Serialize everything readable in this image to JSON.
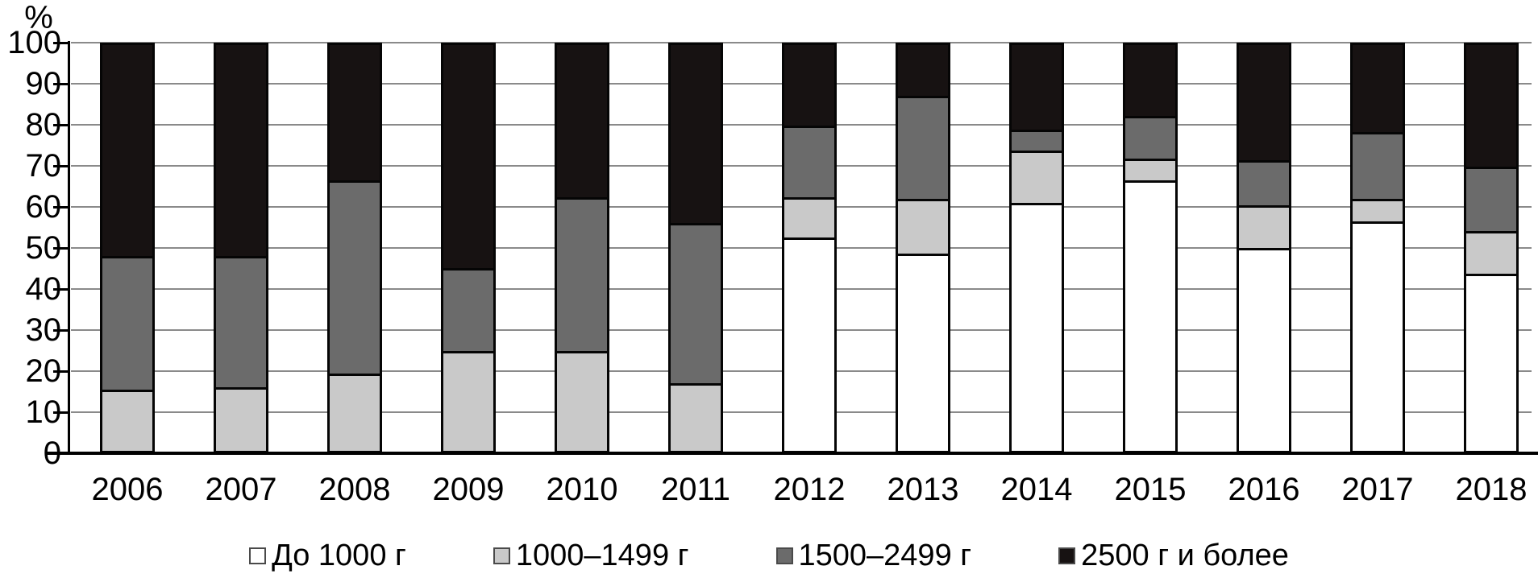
{
  "chart_data": {
    "type": "bar",
    "stacked": true,
    "orientation": "vertical",
    "ylabel": "%",
    "ylim": [
      0,
      100
    ],
    "ytick_step": 10,
    "yticks": [
      0,
      10,
      20,
      30,
      40,
      50,
      60,
      70,
      80,
      90,
      100
    ],
    "grid": true,
    "legend_position": "bottom",
    "categories": [
      "2006",
      "2007",
      "2008",
      "2009",
      "2010",
      "2011",
      "2012",
      "2013",
      "2014",
      "2015",
      "2016",
      "2017",
      "2018"
    ],
    "series": [
      {
        "name": "До 1000 г",
        "color": "#ffffff",
        "values": [
          0,
          0,
          0,
          0,
          0,
          0,
          52,
          48,
          60.5,
          66,
          49.5,
          56,
          43
        ]
      },
      {
        "name": "1000–1499 г",
        "color": "#c9c9c9",
        "values": [
          14.5,
          15,
          18.5,
          24,
          24,
          16,
          10,
          13.5,
          13,
          5.5,
          10.5,
          5.5,
          10.5
        ]
      },
      {
        "name": "1500–2499 г",
        "color": "#6b6b6b",
        "values": [
          33,
          32.5,
          47.5,
          20.5,
          38,
          39.5,
          17.5,
          25.5,
          5,
          10.5,
          11,
          16.5,
          16
        ]
      },
      {
        "name": "2500 г и более",
        "color": "#171212",
        "values": [
          52.5,
          52.5,
          34,
          55.5,
          38,
          44.5,
          20.5,
          13,
          21.5,
          18,
          29,
          22,
          30.5
        ]
      }
    ]
  },
  "colors": {
    "axis": "#000000",
    "gridline": "#8a8a8a",
    "bar_border": "#050505"
  }
}
